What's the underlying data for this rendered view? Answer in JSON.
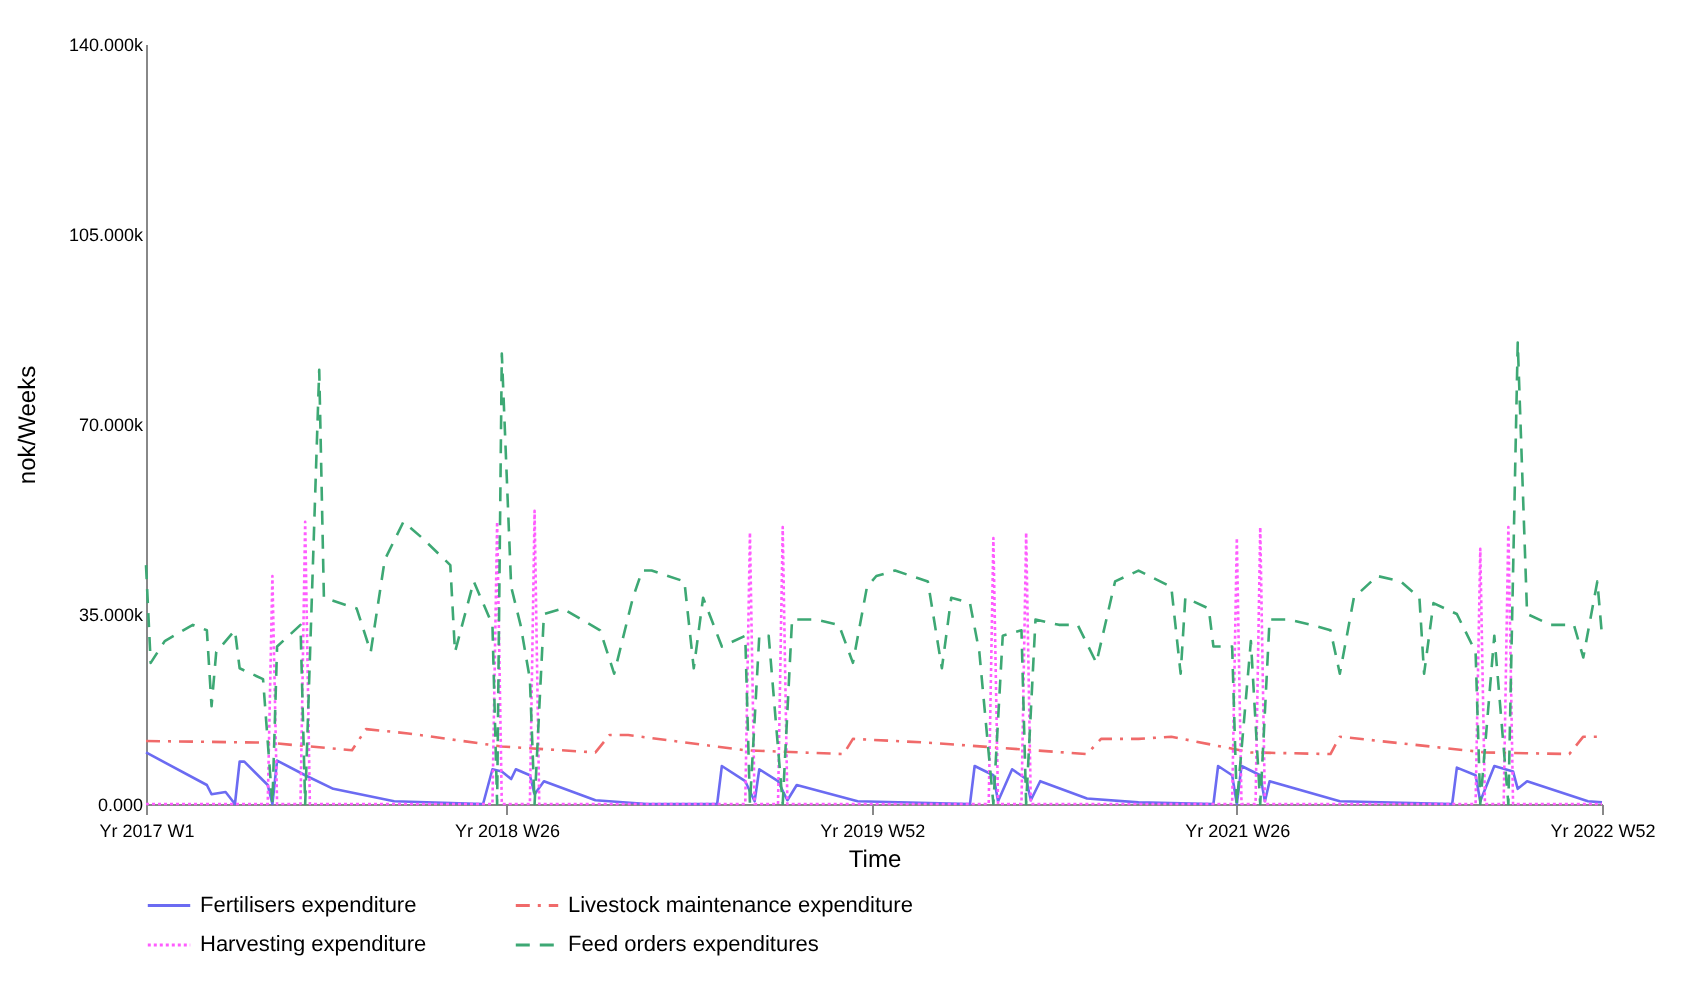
{
  "chart_data": {
    "type": "line",
    "xlabel": "Time",
    "ylabel": "nok/Weeks",
    "legend": "bottom",
    "grid": false,
    "marker": "none",
    "xlim": [
      "2017-01-02",
      "2022-12-19"
    ],
    "xticks": [
      {
        "value": "2017-01-02",
        "label": "Yr 2017 W1"
      },
      {
        "value": "2018-06-25",
        "label": "Yr 2018 W26"
      },
      {
        "value": "2019-12-23",
        "label": "Yr 2019 W52"
      },
      {
        "value": "2021-06-21",
        "label": "Yr 2021 W26"
      },
      {
        "value": "2022-12-19",
        "label": "Yr 2022 W52"
      }
    ],
    "ylim": [
      0,
      140000
    ],
    "yticks": [
      {
        "value": 0,
        "label": "0.000"
      },
      {
        "value": 35000,
        "label": "35.000k"
      },
      {
        "value": 70000,
        "label": "70.000k"
      },
      {
        "value": 105000,
        "label": "105.000k"
      },
      {
        "value": 140000,
        "label": "140.000k"
      }
    ],
    "series": [
      {
        "name": "Fertilisers expenditure",
        "color": "#6b6bf2",
        "line_style": "solid",
        "x": [
          "2017-01-02",
          "2017-04-03",
          "2017-04-10",
          "2017-05-01",
          "2017-05-15",
          "2017-05-22",
          "2017-05-29",
          "2017-07-03",
          "2017-07-10",
          "2017-07-17",
          "2017-08-28",
          "2017-10-09",
          "2018-01-08",
          "2018-05-21",
          "2018-06-04",
          "2018-06-18",
          "2018-07-02",
          "2018-07-09",
          "2018-07-30",
          "2018-08-06",
          "2018-08-20",
          "2018-11-05",
          "2019-01-21",
          "2019-05-06",
          "2019-05-13",
          "2019-06-17",
          "2019-07-01",
          "2019-07-08",
          "2019-08-05",
          "2019-08-19",
          "2019-09-02",
          "2019-12-02",
          "2020-05-18",
          "2020-05-25",
          "2020-06-22",
          "2020-06-29",
          "2020-07-20",
          "2020-08-10",
          "2020-08-17",
          "2020-08-31",
          "2020-11-09",
          "2021-01-25",
          "2021-05-17",
          "2021-05-24",
          "2021-06-14",
          "2021-06-21",
          "2021-06-28",
          "2021-07-26",
          "2021-08-02",
          "2021-08-09",
          "2021-11-22",
          "2022-05-09",
          "2022-05-16",
          "2022-06-13",
          "2022-06-20",
          "2022-07-11",
          "2022-08-08",
          "2022-08-15",
          "2022-08-29",
          "2022-11-28",
          "2022-12-19"
        ],
        "values": [
          9500,
          3500,
          1800,
          2200,
          0,
          7800,
          7800,
          3500,
          0,
          8000,
          5300,
          2800,
          500,
          0,
          6400,
          6000,
          4600,
          6400,
          5300,
          1800,
          4200,
          700,
          0,
          0,
          7000,
          4200,
          500,
          6400,
          4200,
          700,
          3500,
          500,
          0,
          7000,
          5300,
          500,
          6400,
          4600,
          700,
          4200,
          1000,
          300,
          0,
          7000,
          5300,
          0,
          7000,
          5300,
          500,
          4200,
          500,
          0,
          6700,
          5300,
          500,
          7000,
          6000,
          2800,
          4200,
          500,
          300
        ]
      },
      {
        "name": "Livestock maintenance expenditure",
        "color": "#f06a6a",
        "line_style": "dashdot",
        "x": [
          "2017-01-02",
          "2017-07-03",
          "2017-11-06",
          "2017-11-27",
          "2018-01-29",
          "2018-06-18",
          "2018-11-05",
          "2018-11-26",
          "2018-12-24",
          "2019-06-17",
          "2019-11-11",
          "2019-11-25",
          "2020-03-16",
          "2020-11-09",
          "2020-11-30",
          "2021-01-25",
          "2021-03-15",
          "2021-07-12",
          "2021-11-08",
          "2021-11-22",
          "2022-06-27",
          "2022-10-31",
          "2022-11-21",
          "2022-12-19"
        ],
        "values": [
          11600,
          11300,
          9900,
          13800,
          13000,
          10600,
          9500,
          12700,
          12700,
          9900,
          9200,
          12000,
          11300,
          9200,
          12000,
          12000,
          12400,
          9500,
          9200,
          12400,
          9500,
          9200,
          12400,
          12400
        ]
      },
      {
        "name": "Harvesting expenditure",
        "color": "#ff5cff",
        "line_style": "dotted",
        "x": [
          "2017-01-02",
          "2017-07-03",
          "2017-07-10",
          "2017-07-17",
          "2017-08-21",
          "2017-08-28",
          "2017-09-04",
          "2018-06-04",
          "2018-06-11",
          "2018-06-18",
          "2018-07-30",
          "2018-08-06",
          "2018-08-13",
          "2019-06-17",
          "2019-06-24",
          "2019-07-01",
          "2019-08-05",
          "2019-08-12",
          "2019-08-19",
          "2020-06-15",
          "2020-06-22",
          "2020-06-29",
          "2020-08-03",
          "2020-08-10",
          "2020-08-17",
          "2021-06-14",
          "2021-06-21",
          "2021-06-28",
          "2021-07-19",
          "2021-07-26",
          "2021-08-02",
          "2022-06-13",
          "2022-06-20",
          "2022-06-27",
          "2022-07-25",
          "2022-08-01",
          "2022-08-08",
          "2022-12-19"
        ],
        "values": [
          0,
          0,
          42000,
          0,
          0,
          52000,
          0,
          0,
          52000,
          0,
          0,
          54000,
          0,
          0,
          50000,
          0,
          0,
          51000,
          0,
          0,
          49000,
          0,
          0,
          50000,
          0,
          0,
          49000,
          0,
          0,
          51000,
          0,
          0,
          47000,
          0,
          0,
          51000,
          0,
          0
        ]
      },
      {
        "name": "Feed orders expenditures",
        "color": "#3da874",
        "line_style": "dashed",
        "x": [
          "2017-01-02",
          "2017-01-09",
          "2017-01-30",
          "2017-03-13",
          "2017-04-03",
          "2017-04-10",
          "2017-04-17",
          "2017-05-15",
          "2017-05-22",
          "2017-06-26",
          "2017-07-10",
          "2017-07-17",
          "2017-08-21",
          "2017-08-28",
          "2017-09-18",
          "2017-09-25",
          "2017-11-13",
          "2017-12-04",
          "2017-12-25",
          "2018-01-22",
          "2018-02-19",
          "2018-04-02",
          "2018-04-09",
          "2018-05-07",
          "2018-06-04",
          "2018-06-11",
          "2018-06-18",
          "2018-07-02",
          "2018-07-16",
          "2018-07-30",
          "2018-08-06",
          "2018-08-20",
          "2018-09-17",
          "2018-11-12",
          "2018-12-03",
          "2018-12-31",
          "2019-01-14",
          "2019-01-28",
          "2019-03-18",
          "2019-04-01",
          "2019-04-15",
          "2019-05-13",
          "2019-06-17",
          "2019-06-24",
          "2019-07-08",
          "2019-07-22",
          "2019-08-12",
          "2019-08-26",
          "2019-09-30",
          "2019-11-04",
          "2019-11-25",
          "2019-12-16",
          "2019-12-30",
          "2020-01-27",
          "2020-03-16",
          "2020-04-06",
          "2020-04-20",
          "2020-05-18",
          "2020-06-01",
          "2020-06-22",
          "2020-07-06",
          "2020-08-03",
          "2020-08-10",
          "2020-08-24",
          "2020-09-28",
          "2020-10-26",
          "2020-11-23",
          "2020-12-21",
          "2021-01-25",
          "2021-03-15",
          "2021-03-29",
          "2021-04-05",
          "2021-05-10",
          "2021-05-17",
          "2021-06-14",
          "2021-06-21",
          "2021-07-12",
          "2021-07-26",
          "2021-08-09",
          "2021-09-06",
          "2021-10-11",
          "2021-11-08",
          "2021-11-22",
          "2021-12-13",
          "2022-01-17",
          "2022-02-21",
          "2022-03-21",
          "2022-03-28",
          "2022-04-11",
          "2022-05-16",
          "2022-06-13",
          "2022-06-20",
          "2022-07-11",
          "2022-08-01",
          "2022-08-15",
          "2022-08-29",
          "2022-10-03",
          "2022-11-07",
          "2022-11-21",
          "2022-12-12",
          "2022-12-19"
        ],
        "values": [
          44000,
          26000,
          30000,
          33000,
          32000,
          18000,
          28000,
          32000,
          25000,
          23000,
          0,
          29000,
          33000,
          0,
          80000,
          38000,
          36000,
          28000,
          45000,
          52000,
          49000,
          44000,
          28000,
          41000,
          33000,
          0,
          83000,
          40000,
          33000,
          23000,
          0,
          35000,
          36000,
          32000,
          24000,
          38000,
          43000,
          43000,
          41000,
          25000,
          38000,
          29000,
          31000,
          0,
          31000,
          31000,
          0,
          34000,
          34000,
          33000,
          26000,
          40000,
          42000,
          43000,
          41000,
          25000,
          38000,
          37000,
          28000,
          0,
          31000,
          32000,
          0,
          34000,
          33000,
          33000,
          26000,
          41000,
          43000,
          40000,
          24000,
          38000,
          36000,
          29000,
          29000,
          0,
          30000,
          0,
          34000,
          34000,
          33000,
          32000,
          24000,
          38000,
          42000,
          41000,
          38000,
          24000,
          37000,
          35000,
          28000,
          0,
          31000,
          0,
          85000,
          35000,
          33000,
          33000,
          27000,
          41000,
          31000
        ]
      }
    ]
  }
}
